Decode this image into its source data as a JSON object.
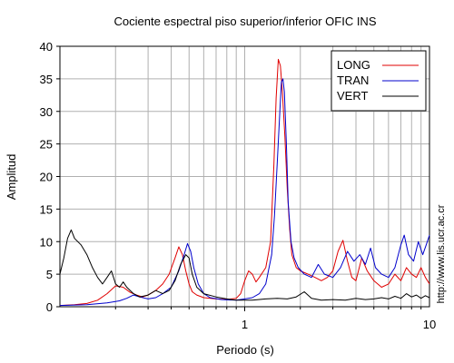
{
  "chart_data": {
    "type": "line",
    "title": "Cociente espectral piso superior/inferior  OFIC INS",
    "xlabel": "Periodo (s)",
    "ylabel": "Amplitud",
    "xscale": "log",
    "xlim": [
      0.1,
      10
    ],
    "ylim": [
      0,
      40
    ],
    "x_ticks": [
      1,
      10
    ],
    "y_ticks": [
      0,
      5,
      10,
      15,
      20,
      25,
      30,
      35,
      40
    ],
    "grid": true,
    "legend_position": "top-right",
    "side_label": "http://www.lis.ucr.ac.cr",
    "series": [
      {
        "name": "LONG",
        "color": "#e00000",
        "points": [
          [
            0.1,
            0.2
          ],
          [
            0.12,
            0.3
          ],
          [
            0.14,
            0.5
          ],
          [
            0.16,
            1.0
          ],
          [
            0.18,
            2.0
          ],
          [
            0.2,
            3.2
          ],
          [
            0.22,
            3.0
          ],
          [
            0.24,
            2.2
          ],
          [
            0.26,
            1.8
          ],
          [
            0.28,
            1.5
          ],
          [
            0.3,
            1.8
          ],
          [
            0.33,
            2.5
          ],
          [
            0.36,
            3.5
          ],
          [
            0.39,
            5.0
          ],
          [
            0.42,
            7.5
          ],
          [
            0.44,
            9.2
          ],
          [
            0.46,
            8.0
          ],
          [
            0.48,
            5.5
          ],
          [
            0.5,
            3.5
          ],
          [
            0.52,
            2.3
          ],
          [
            0.55,
            1.8
          ],
          [
            0.6,
            1.4
          ],
          [
            0.7,
            1.2
          ],
          [
            0.8,
            1.1
          ],
          [
            0.9,
            1.3
          ],
          [
            0.95,
            2.0
          ],
          [
            1.0,
            4.0
          ],
          [
            1.05,
            5.5
          ],
          [
            1.1,
            5.0
          ],
          [
            1.15,
            3.8
          ],
          [
            1.2,
            4.5
          ],
          [
            1.3,
            6.0
          ],
          [
            1.38,
            10.0
          ],
          [
            1.44,
            22.0
          ],
          [
            1.48,
            32.0
          ],
          [
            1.52,
            38.0
          ],
          [
            1.56,
            37.0
          ],
          [
            1.6,
            33.0
          ],
          [
            1.65,
            26.0
          ],
          [
            1.7,
            18.0
          ],
          [
            1.75,
            12.0
          ],
          [
            1.8,
            8.0
          ],
          [
            1.9,
            6.0
          ],
          [
            2.0,
            5.5
          ],
          [
            2.2,
            5.0
          ],
          [
            2.4,
            4.5
          ],
          [
            2.6,
            4.0
          ],
          [
            2.8,
            4.5
          ],
          [
            3.0,
            5.5
          ],
          [
            3.2,
            8.5
          ],
          [
            3.4,
            10.2
          ],
          [
            3.6,
            7.0
          ],
          [
            3.8,
            4.5
          ],
          [
            4.0,
            4.0
          ],
          [
            4.3,
            7.5
          ],
          [
            4.6,
            5.5
          ],
          [
            5.0,
            4.0
          ],
          [
            5.5,
            3.0
          ],
          [
            6.0,
            3.5
          ],
          [
            6.5,
            5.0
          ],
          [
            7.0,
            4.0
          ],
          [
            7.5,
            6.0
          ],
          [
            8.0,
            5.0
          ],
          [
            8.5,
            4.5
          ],
          [
            9.0,
            6.0
          ],
          [
            9.5,
            4.5
          ],
          [
            10.0,
            3.5
          ]
        ]
      },
      {
        "name": "TRAN",
        "color": "#0000cc",
        "points": [
          [
            0.1,
            0.2
          ],
          [
            0.14,
            0.3
          ],
          [
            0.18,
            0.6
          ],
          [
            0.21,
            0.9
          ],
          [
            0.23,
            1.3
          ],
          [
            0.25,
            1.8
          ],
          [
            0.27,
            1.5
          ],
          [
            0.3,
            1.2
          ],
          [
            0.33,
            1.4
          ],
          [
            0.36,
            2.0
          ],
          [
            0.4,
            3.0
          ],
          [
            0.44,
            5.5
          ],
          [
            0.47,
            8.0
          ],
          [
            0.49,
            9.7
          ],
          [
            0.51,
            8.5
          ],
          [
            0.53,
            6.0
          ],
          [
            0.56,
            3.5
          ],
          [
            0.6,
            2.0
          ],
          [
            0.65,
            1.4
          ],
          [
            0.75,
            1.1
          ],
          [
            0.9,
            1.0
          ],
          [
            1.0,
            1.2
          ],
          [
            1.1,
            1.4
          ],
          [
            1.2,
            2.0
          ],
          [
            1.3,
            3.5
          ],
          [
            1.4,
            8.0
          ],
          [
            1.45,
            14.0
          ],
          [
            1.5,
            22.0
          ],
          [
            1.55,
            30.0
          ],
          [
            1.58,
            34.5
          ],
          [
            1.61,
            35.0
          ],
          [
            1.64,
            33.0
          ],
          [
            1.68,
            25.0
          ],
          [
            1.72,
            16.0
          ],
          [
            1.78,
            10.0
          ],
          [
            1.85,
            7.5
          ],
          [
            1.95,
            6.0
          ],
          [
            2.1,
            5.0
          ],
          [
            2.3,
            4.5
          ],
          [
            2.5,
            6.5
          ],
          [
            2.7,
            5.0
          ],
          [
            3.0,
            4.5
          ],
          [
            3.3,
            6.0
          ],
          [
            3.6,
            8.5
          ],
          [
            3.9,
            7.0
          ],
          [
            4.2,
            8.0
          ],
          [
            4.5,
            6.5
          ],
          [
            4.8,
            9.0
          ],
          [
            5.1,
            6.0
          ],
          [
            5.5,
            5.0
          ],
          [
            6.0,
            4.5
          ],
          [
            6.5,
            6.0
          ],
          [
            7.0,
            9.5
          ],
          [
            7.3,
            11.0
          ],
          [
            7.7,
            8.0
          ],
          [
            8.2,
            7.0
          ],
          [
            8.7,
            10.0
          ],
          [
            9.2,
            8.0
          ],
          [
            9.6,
            9.5
          ],
          [
            10.0,
            11.0
          ]
        ]
      },
      {
        "name": "VERT",
        "color": "#000000",
        "points": [
          [
            0.1,
            5.0
          ],
          [
            0.105,
            7.5
          ],
          [
            0.11,
            10.5
          ],
          [
            0.115,
            11.8
          ],
          [
            0.12,
            10.5
          ],
          [
            0.13,
            9.5
          ],
          [
            0.14,
            8.0
          ],
          [
            0.15,
            6.0
          ],
          [
            0.16,
            4.5
          ],
          [
            0.17,
            3.5
          ],
          [
            0.18,
            4.5
          ],
          [
            0.19,
            5.5
          ],
          [
            0.2,
            3.5
          ],
          [
            0.21,
            3.0
          ],
          [
            0.22,
            3.8
          ],
          [
            0.23,
            3.0
          ],
          [
            0.25,
            2.0
          ],
          [
            0.27,
            1.5
          ],
          [
            0.3,
            1.8
          ],
          [
            0.33,
            2.5
          ],
          [
            0.36,
            2.0
          ],
          [
            0.39,
            2.5
          ],
          [
            0.42,
            4.0
          ],
          [
            0.45,
            6.5
          ],
          [
            0.48,
            8.0
          ],
          [
            0.5,
            7.5
          ],
          [
            0.52,
            5.0
          ],
          [
            0.55,
            3.0
          ],
          [
            0.6,
            2.0
          ],
          [
            0.7,
            1.5
          ],
          [
            0.8,
            1.2
          ],
          [
            0.9,
            1.0
          ],
          [
            1.0,
            1.0
          ],
          [
            1.1,
            1.0
          ],
          [
            1.3,
            1.2
          ],
          [
            1.5,
            1.3
          ],
          [
            1.7,
            1.2
          ],
          [
            1.9,
            1.5
          ],
          [
            2.1,
            2.3
          ],
          [
            2.3,
            1.3
          ],
          [
            2.6,
            1.0
          ],
          [
            3.0,
            1.1
          ],
          [
            3.5,
            1.0
          ],
          [
            4.0,
            1.3
          ],
          [
            4.5,
            1.1
          ],
          [
            5.0,
            1.2
          ],
          [
            5.5,
            1.4
          ],
          [
            6.0,
            1.2
          ],
          [
            6.5,
            1.6
          ],
          [
            7.0,
            1.3
          ],
          [
            7.5,
            2.0
          ],
          [
            8.0,
            1.5
          ],
          [
            8.5,
            1.8
          ],
          [
            9.0,
            1.3
          ],
          [
            9.5,
            1.7
          ],
          [
            10.0,
            1.4
          ]
        ]
      }
    ]
  }
}
